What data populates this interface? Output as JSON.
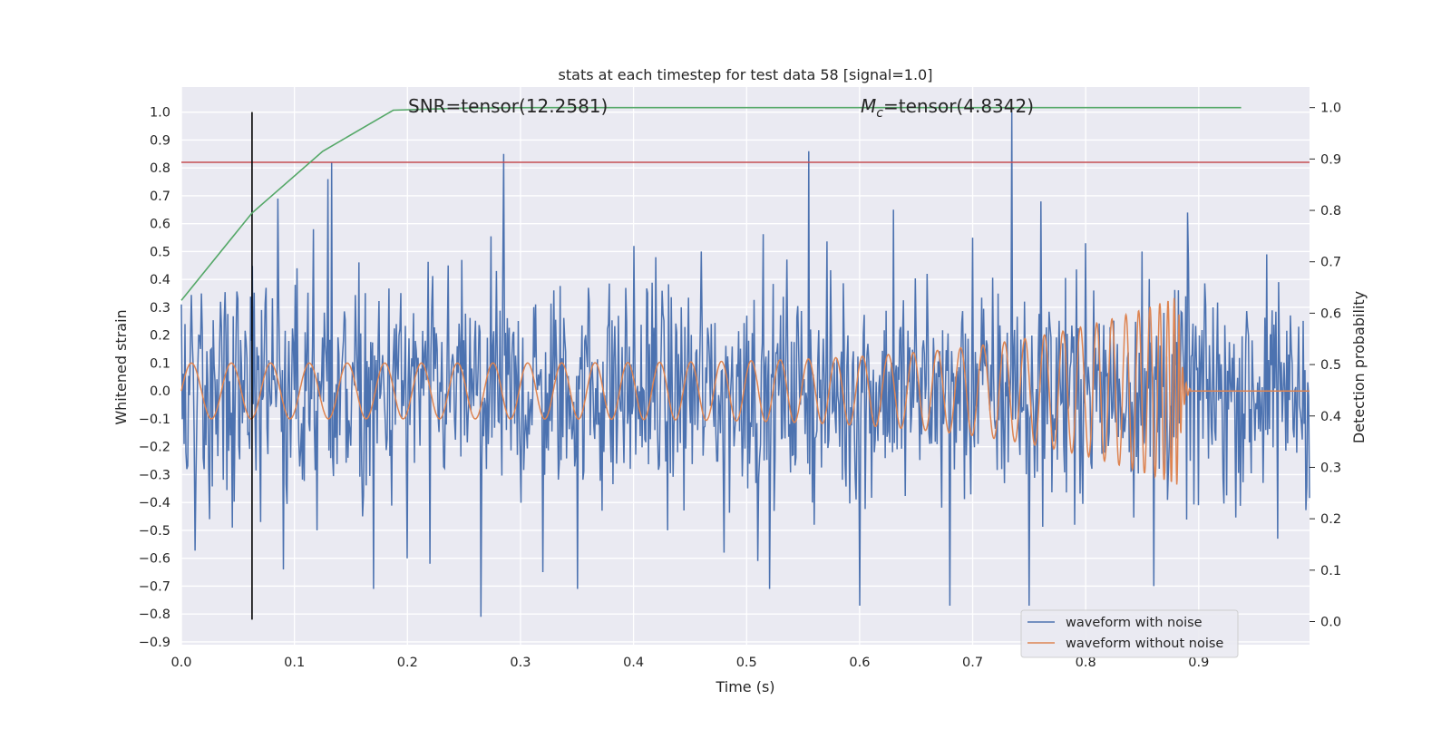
{
  "chart_data": {
    "type": "line",
    "title": "stats at each timestep for test data 58 [signal=1.0]",
    "xlabel": "Time (s)",
    "ylabel_left": "Whitened strain",
    "ylabel_right": "Detection probability",
    "xlim": [
      0.0,
      0.998
    ],
    "ylim_left": [
      -0.91,
      1.09
    ],
    "ylim_right": [
      -0.045,
      1.04
    ],
    "x_ticks": [
      "0.0",
      "0.1",
      "0.2",
      "0.3",
      "0.4",
      "0.5",
      "0.6",
      "0.7",
      "0.8",
      "0.9"
    ],
    "y_left_ticks": [
      "1.0",
      "0.9",
      "0.8",
      "0.7",
      "0.6",
      "0.5",
      "0.4",
      "0.3",
      "0.2",
      "0.1",
      "0.0",
      "−0.1",
      "−0.2",
      "−0.3",
      "−0.4",
      "−0.5",
      "−0.6",
      "−0.7",
      "−0.8",
      "−0.9"
    ],
    "y_right_ticks": [
      "1.0",
      "0.9",
      "0.8",
      "0.7",
      "0.6",
      "0.5",
      "0.4",
      "0.3",
      "0.2",
      "0.1",
      "0.0"
    ],
    "grid": true,
    "legend_position": "lower-right",
    "series": [
      {
        "name": "waveform with noise",
        "axis": "left",
        "color": "#4c72b0",
        "description_values": {
          "sample_peaks": [
            [
              0.003,
              0.24
            ],
            [
              0.018,
              0.35
            ],
            [
              0.035,
              0.32
            ],
            [
              0.05,
              0.33
            ],
            [
              0.062,
              0.18
            ],
            [
              0.075,
              0.37
            ],
            [
              0.085,
              0.69
            ],
            [
              0.102,
              0.44
            ],
            [
              0.117,
              0.58
            ],
            [
              0.13,
              0.76
            ],
            [
              0.133,
              0.82
            ],
            [
              0.19,
              0.24
            ],
            [
              0.2,
              0.16
            ],
            [
              0.216,
              0.18
            ],
            [
              0.236,
              0.45
            ],
            [
              0.265,
              0.22
            ],
            [
              0.285,
              0.85
            ],
            [
              0.32,
              0.3
            ],
            [
              0.36,
              0.37
            ],
            [
              0.4,
              0.52
            ],
            [
              0.42,
              0.48
            ],
            [
              0.46,
              0.5
            ],
            [
              0.5,
              0.27
            ],
            [
              0.52,
              0.66
            ],
            [
              0.555,
              0.86
            ],
            [
              0.6,
              0.55
            ],
            [
              0.63,
              0.65
            ],
            [
              0.66,
              0.42
            ],
            [
              0.7,
              0.55
            ],
            [
              0.735,
              1.0
            ],
            [
              0.76,
              0.68
            ],
            [
              0.8,
              0.53
            ],
            [
              0.85,
              0.5
            ],
            [
              0.89,
              0.64
            ],
            [
              0.96,
              0.49
            ]
          ],
          "sample_troughs": [
            [
              0.005,
              -0.28
            ],
            [
              0.025,
              -0.46
            ],
            [
              0.045,
              -0.49
            ],
            [
              0.07,
              -0.47
            ],
            [
              0.09,
              -0.64
            ],
            [
              0.12,
              -0.5
            ],
            [
              0.16,
              -0.45
            ],
            [
              0.17,
              -0.71
            ],
            [
              0.2,
              -0.6
            ],
            [
              0.22,
              -0.62
            ],
            [
              0.265,
              -0.81
            ],
            [
              0.32,
              -0.65
            ],
            [
              0.35,
              -0.71
            ],
            [
              0.43,
              -0.5
            ],
            [
              0.48,
              -0.58
            ],
            [
              0.51,
              -0.61
            ],
            [
              0.52,
              -0.71
            ],
            [
              0.56,
              -0.48
            ],
            [
              0.6,
              -0.77
            ],
            [
              0.68,
              -0.77
            ],
            [
              0.75,
              -0.77
            ],
            [
              0.79,
              -0.48
            ],
            [
              0.86,
              -0.7
            ],
            [
              0.9,
              -0.41
            ],
            [
              0.97,
              -0.53
            ]
          ],
          "amplitude_range": [
            -0.82,
            1.0
          ]
        }
      },
      {
        "name": "waveform without noise",
        "axis": "left",
        "color": "#dd8452",
        "chirp": {
          "start_frequency_hz": 28,
          "merger_time": 0.882,
          "amplitude_start": 0.1,
          "amplitude_peak": 0.34,
          "ringdown_end": 0.893,
          "after_ringdown": 0.0
        }
      },
      {
        "name": "detection probability",
        "axis": "right",
        "color": "#55a868",
        "x": [
          0.0,
          0.0625,
          0.125,
          0.1875,
          0.25,
          0.3125,
          0.375,
          0.4375,
          0.5,
          0.5625,
          0.625,
          0.6875,
          0.75,
          0.8125,
          0.875,
          0.9375
        ],
        "values": [
          0.625,
          0.795,
          0.915,
          0.995,
          0.999,
          1.0,
          1.0,
          1.0,
          1.0,
          1.0,
          1.0,
          1.0,
          1.0,
          1.0,
          1.0,
          1.0
        ]
      },
      {
        "name": "threshold",
        "axis": "left",
        "color": "#c44e52",
        "values": [
          0.82
        ]
      },
      {
        "name": "vertical marker",
        "axis": "left",
        "color": "#000000",
        "x_value": 0.0625,
        "values": [
          -0.82,
          1.0
        ]
      }
    ],
    "annotations": [
      {
        "text_prefix": "SNR=tensor(12.2581)",
        "x": 0.2,
        "y": 1.0
      },
      {
        "text_symbol": "M",
        "text_subscript": "c",
        "text_suffix": "=tensor(4.8342)",
        "x": 0.6,
        "y": 1.0
      }
    ],
    "legend": [
      "waveform with noise",
      "waveform without noise"
    ]
  }
}
